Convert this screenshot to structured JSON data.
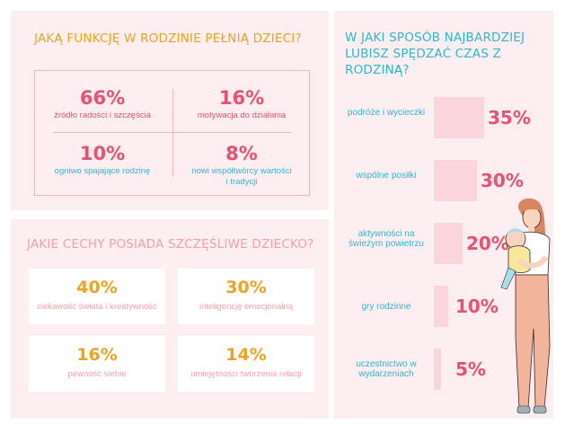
{
  "family_function": {
    "title": "JAKĄ FUNKCJĘ W RODZINIE PEŁNIĄ DZIECI?",
    "items": [
      {
        "pct": "66%",
        "label": "źródło radości i szczęścia"
      },
      {
        "pct": "16%",
        "label": "motywacja do działania"
      },
      {
        "pct": "10%",
        "label": "ogniwo spajające rodzinę"
      },
      {
        "pct": "8%",
        "label": "nowi współtwórcy wartości i tradycji"
      }
    ]
  },
  "happy_child": {
    "title": "JAKIE CECHY POSIADA SZCZĘŚLIWE DZIECKO?",
    "items": [
      {
        "pct": "40%",
        "label": "ciekawość świata i kreatywność"
      },
      {
        "pct": "30%",
        "label": "inteligencję emocjonalną"
      },
      {
        "pct": "16%",
        "label": "pewność siebie"
      },
      {
        "pct": "14%",
        "label": "umiejętności tworzenia relacji"
      }
    ]
  },
  "chart_data": {
    "type": "bar",
    "orientation": "horizontal",
    "title": "W JAKI SPOSÓB NAJBARDZIEJ LUBISZ SPĘDZAĆ CZAS Z RODZINĄ?",
    "categories": [
      "podróże i wycieczki",
      "wspólne posiłki",
      "aktywności na świeżym powietrzu",
      "gry rodzinne",
      "uczestnictwo w wydarzeniach"
    ],
    "values": [
      35,
      30,
      20,
      10,
      5
    ],
    "value_labels": [
      "35%",
      "30%",
      "20%",
      "10%",
      "5%"
    ],
    "xlim": [
      0,
      35
    ],
    "colors": {
      "bar": "#fbd5dc",
      "value": "#ee4f6f",
      "label": "#2cb8cf"
    }
  },
  "illustration": {
    "icon": "mother-holding-baby-illustration"
  }
}
